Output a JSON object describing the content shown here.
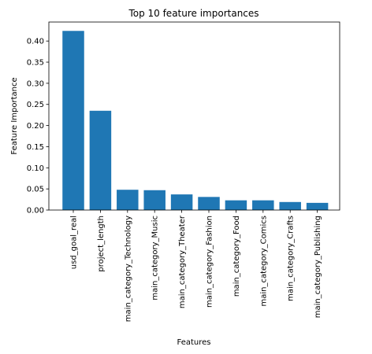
{
  "chart_data": {
    "type": "bar",
    "title": "Top 10 feature importances",
    "xlabel": "Features",
    "ylabel": "Feature Importance",
    "categories": [
      "usd_goal_real",
      "project_length",
      "main_category_Technology",
      "main_category_Music",
      "main_category_Theater",
      "main_category_Fashion",
      "main_category_Food",
      "main_category_Comics",
      "main_category_Crafts",
      "main_category_Publishing"
    ],
    "values": [
      0.424,
      0.235,
      0.048,
      0.047,
      0.037,
      0.031,
      0.023,
      0.023,
      0.019,
      0.017
    ],
    "ylim": [
      0,
      0.445
    ],
    "yticks": [
      0.0,
      0.05,
      0.1,
      0.15,
      0.2,
      0.25,
      0.3,
      0.35,
      0.4
    ],
    "ytick_labels": [
      "0.00",
      "0.05",
      "0.10",
      "0.15",
      "0.20",
      "0.25",
      "0.30",
      "0.35",
      "0.40"
    ],
    "grid": false,
    "bar_color": "#1f77b4"
  }
}
